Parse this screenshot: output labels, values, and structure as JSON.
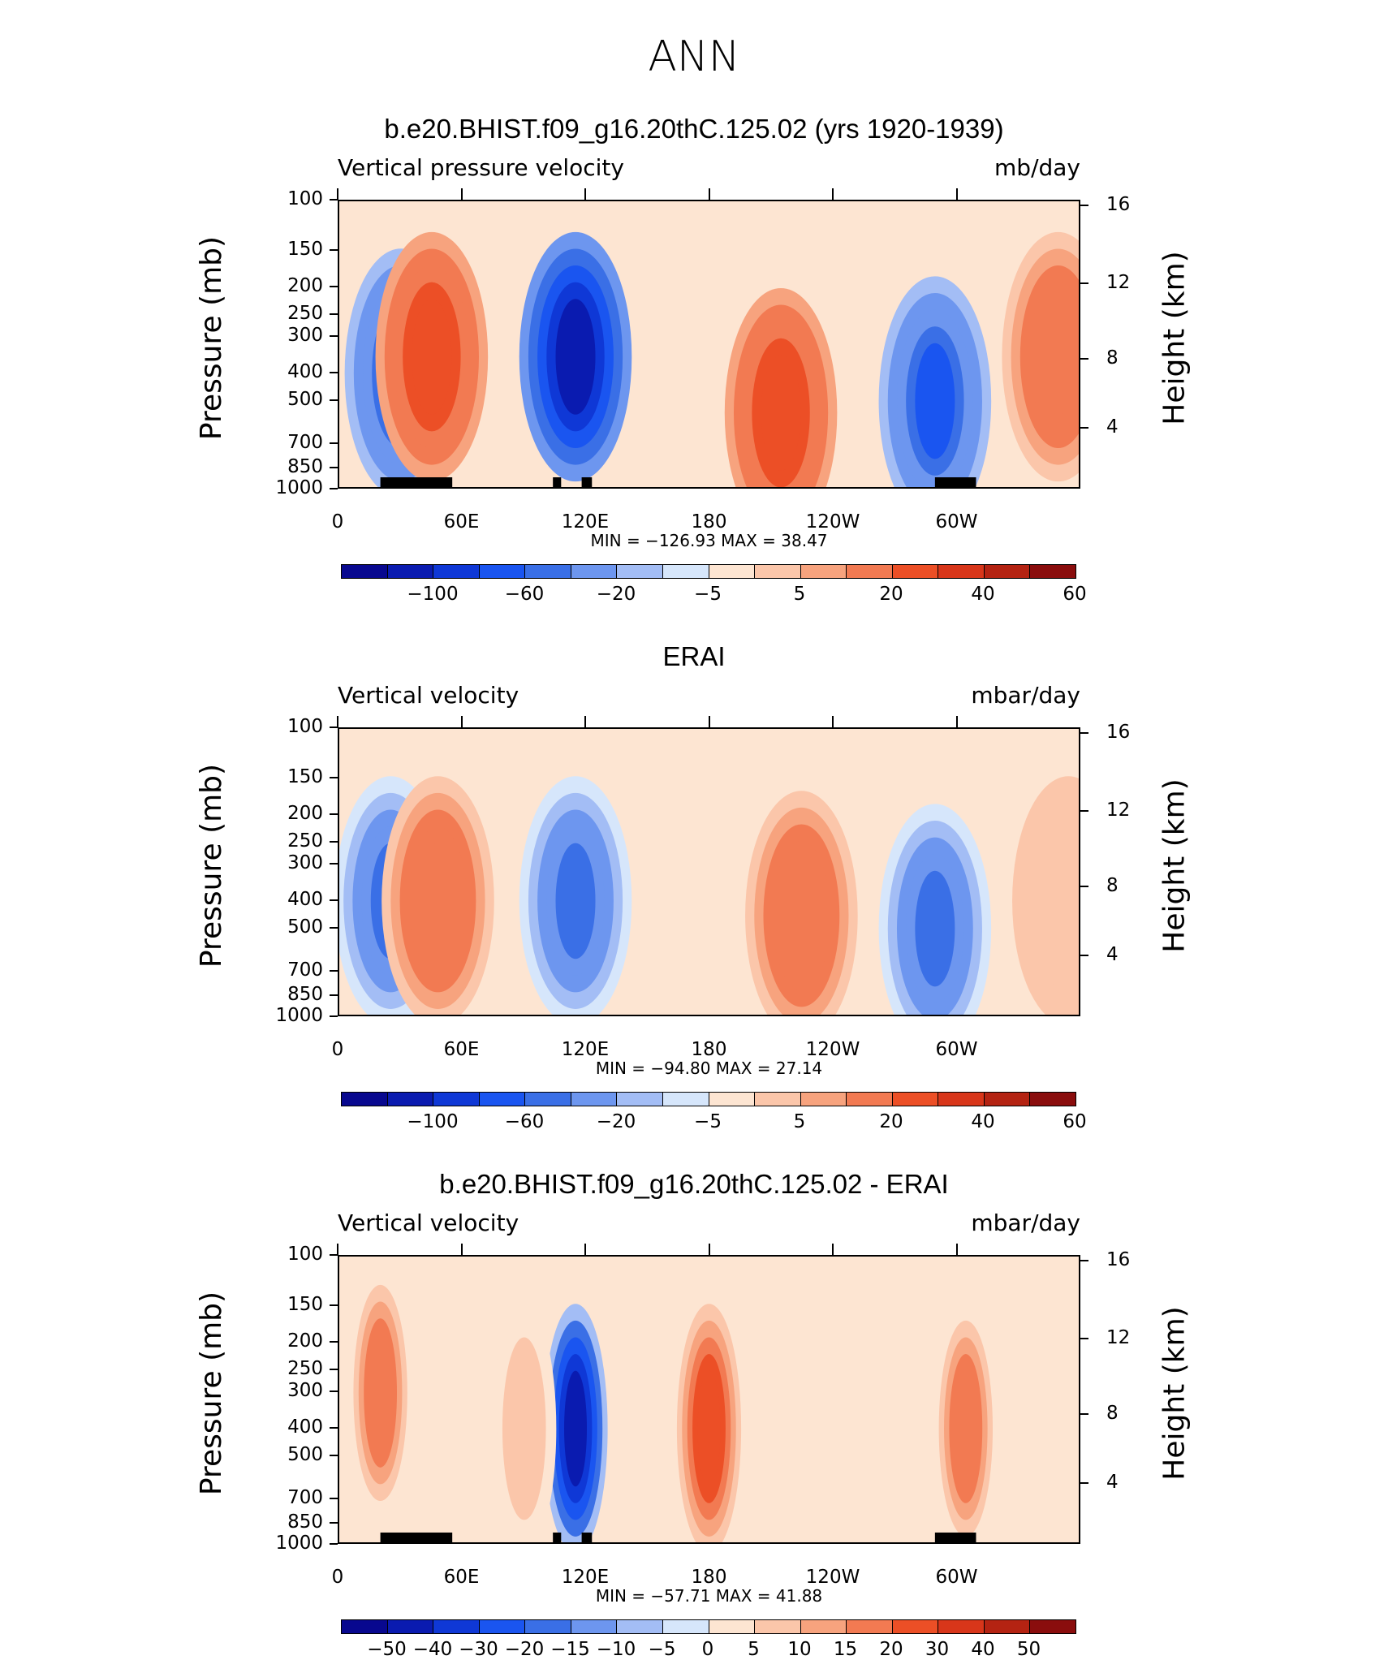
{
  "page_title": "ANN",
  "colors": {
    "levels_main": [
      "#08088f",
      "#0a1bb0",
      "#0f38d6",
      "#1a55f0",
      "#3a6fe6",
      "#6d96ef",
      "#a3bdf5",
      "#d6e6fb",
      "#fde5d2",
      "#fbc6aa",
      "#f7a37e",
      "#f27a52",
      "#ec4f26",
      "#d8361a",
      "#b42312",
      "#8a0d0d"
    ],
    "levels_diff": [
      "#08088f",
      "#0a1bb0",
      "#0f38d6",
      "#1a55f0",
      "#3a6fe6",
      "#6d96ef",
      "#a3bdf5",
      "#d6e6fb",
      "#fde5d2",
      "#fbc6aa",
      "#f7a37e",
      "#f27a52",
      "#ec4f26",
      "#d8361a",
      "#b42312",
      "#8a0d0d"
    ]
  },
  "chart_data": [
    {
      "type": "heatmap",
      "title": "b.e20.BHIST.f09_g16.20thC.125.02 (yrs 1920-1939)",
      "variable": "Vertical pressure velocity",
      "units": "mb/day",
      "ylabel": "Pressure (mb)",
      "ylabel_right": "Height (km)",
      "x_ticks": [
        "0",
        "60E",
        "120E",
        "180",
        "120W",
        "60W"
      ],
      "y_ticks": [
        "100",
        "150",
        "200",
        "250",
        "300",
        "400",
        "500",
        "700",
        "850",
        "1000"
      ],
      "y_ticks_right": [
        "16",
        "12",
        "8",
        "4"
      ],
      "min_label": "MIN = −126.93",
      "max_label": "MAX =   38.47",
      "min": -126.93,
      "max": 38.47,
      "colorbar_labels": [
        "−100",
        "−60",
        "−20",
        "−5",
        "5",
        "20",
        "40",
        "60"
      ],
      "regions": [
        {
          "lon": 30,
          "p": 400,
          "value": -60
        },
        {
          "lon": 45,
          "p": 350,
          "value": 30
        },
        {
          "lon": 115,
          "p": 350,
          "value": -100
        },
        {
          "lon": 215,
          "p": 550,
          "value": 30
        },
        {
          "lon": 290,
          "p": 500,
          "value": -60
        },
        {
          "lon": 350,
          "p": 350,
          "value": 20
        }
      ]
    },
    {
      "type": "heatmap",
      "title": "ERAI",
      "variable": "Vertical velocity",
      "units": "mbar/day",
      "ylabel": "Pressure (mb)",
      "ylabel_right": "Height (km)",
      "x_ticks": [
        "0",
        "60E",
        "120E",
        "180",
        "120W",
        "60W"
      ],
      "y_ticks": [
        "100",
        "150",
        "200",
        "250",
        "300",
        "400",
        "500",
        "700",
        "850",
        "1000"
      ],
      "y_ticks_right": [
        "16",
        "12",
        "8",
        "4"
      ],
      "min_label": "MIN = −94.80",
      "max_label": "MAX =   27.14",
      "min": -94.8,
      "max": 27.14,
      "colorbar_labels": [
        "−100",
        "−60",
        "−20",
        "−5",
        "5",
        "20",
        "40",
        "60"
      ],
      "regions": [
        {
          "lon": 25,
          "p": 400,
          "value": -40
        },
        {
          "lon": 48,
          "p": 400,
          "value": 20
        },
        {
          "lon": 115,
          "p": 400,
          "value": -40
        },
        {
          "lon": 225,
          "p": 450,
          "value": 20
        },
        {
          "lon": 290,
          "p": 500,
          "value": -40
        },
        {
          "lon": 355,
          "p": 400,
          "value": 5
        }
      ]
    },
    {
      "type": "heatmap",
      "title": "b.e20.BHIST.f09_g16.20thC.125.02 - ERAI",
      "variable": "Vertical velocity",
      "units": "mbar/day",
      "ylabel": "Pressure (mb)",
      "ylabel_right": "Height (km)",
      "x_ticks": [
        "0",
        "60E",
        "120E",
        "180",
        "120W",
        "60W"
      ],
      "y_ticks": [
        "100",
        "150",
        "200",
        "250",
        "300",
        "400",
        "500",
        "700",
        "850",
        "1000"
      ],
      "y_ticks_right": [
        "16",
        "12",
        "8",
        "4"
      ],
      "min_label": "MIN = −57.71",
      "max_label": "MAX =   41.88",
      "min": -57.71,
      "max": 41.88,
      "colorbar_labels": [
        "−50",
        "−40",
        "−30",
        "−20",
        "−15",
        "−10",
        "−5",
        "0",
        "5",
        "10",
        "15",
        "20",
        "30",
        "40",
        "50"
      ],
      "regions": [
        {
          "lon": 20,
          "p": 300,
          "value": 20
        },
        {
          "lon": 115,
          "p": 400,
          "value": -40
        },
        {
          "lon": 180,
          "p": 400,
          "value": 30
        },
        {
          "lon": 305,
          "p": 400,
          "value": 20
        },
        {
          "lon": 90,
          "p": 400,
          "value": 10
        }
      ]
    }
  ]
}
